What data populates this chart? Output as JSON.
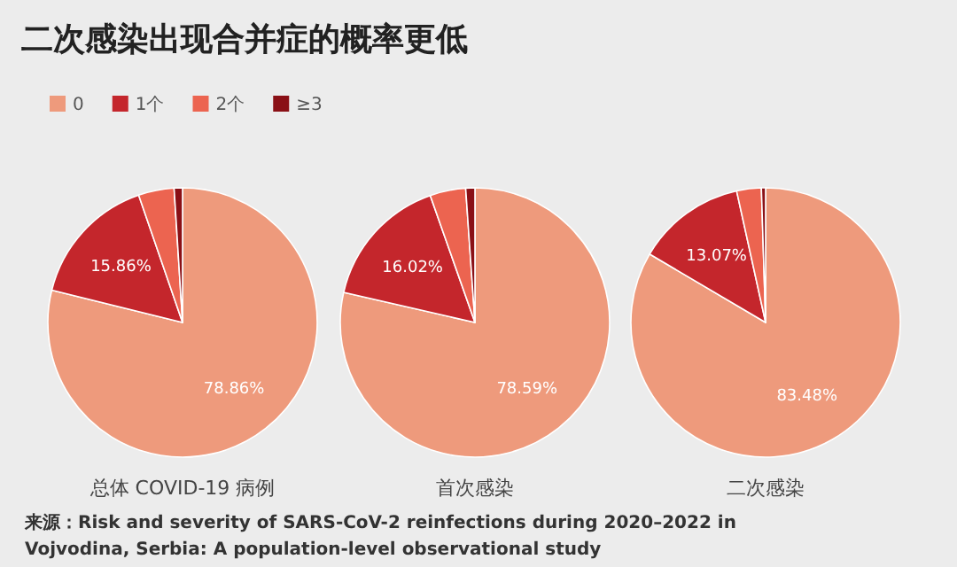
{
  "chart_data": [
    {
      "type": "pie",
      "title": "二次感染出现合并症的概率更低",
      "xlabel": "总体 COVID-19 病例",
      "categories": [
        "0",
        "1个",
        "2个",
        "≥3"
      ],
      "values": [
        78.86,
        15.86,
        4.28,
        1.0
      ],
      "value_labels": [
        "78.86%",
        "15.86%",
        null,
        null
      ],
      "colors": [
        "#ee9a7c",
        "#c4262c",
        "#ec6450",
        "#8a1016"
      ],
      "legend": "top left",
      "annotations": [
        "来源：Risk and severity of SARS-CoV-2 reinfections during 2020–2022 in Vojvodina, Serbia: A population-level observational study"
      ]
    },
    {
      "type": "pie",
      "xlabel": "首次感染",
      "categories": [
        null,
        null,
        null,
        null
      ],
      "values": [
        78.59,
        16.02,
        4.29,
        1.1
      ],
      "value_labels": [
        "78.59%",
        "16.02%",
        null,
        null
      ],
      "colors": [
        "#ee9a7c",
        "#c4262c",
        "#ec6450",
        "#8a1016"
      ]
    },
    {
      "type": "pie",
      "xlabel": "二次感染",
      "categories": [
        null,
        null,
        null,
        null
      ],
      "values": [
        83.48,
        13.07,
        2.95,
        0.5
      ],
      "value_labels": [
        "83.48%",
        "13.07%",
        null,
        null
      ],
      "colors": [
        "#ee9a7c",
        "#c4262c",
        "#ec6450",
        "#8a1016"
      ]
    }
  ]
}
